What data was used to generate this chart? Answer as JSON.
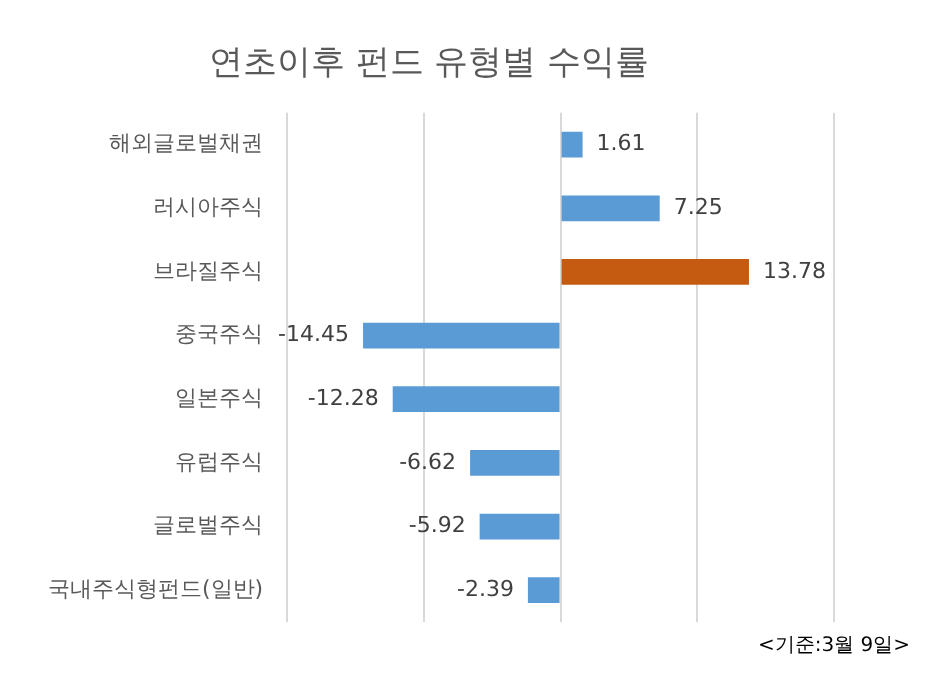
{
  "chart_data": {
    "type": "bar",
    "orientation": "horizontal",
    "title": "연초이후 펀드 유형별 수익률",
    "categories": [
      "해외글로벌채권",
      "러시아주식",
      "브라질주식",
      "중국주식",
      "일본주식",
      "유럽주식",
      "글로벌주식",
      "국내주식형펀드(일반)"
    ],
    "values": [
      1.61,
      7.25,
      13.78,
      -14.45,
      -12.28,
      -6.62,
      -5.92,
      -2.39
    ],
    "colors": [
      "#5b9bd5",
      "#5b9bd5",
      "#c55a11",
      "#5b9bd5",
      "#5b9bd5",
      "#5b9bd5",
      "#5b9bd5",
      "#5b9bd5"
    ],
    "xlim": [
      -20,
      20
    ],
    "grid": "x",
    "tick_labels": "y",
    "data_labels": true,
    "legend": false,
    "annotations": [
      "<기준:3월 9일>"
    ]
  }
}
